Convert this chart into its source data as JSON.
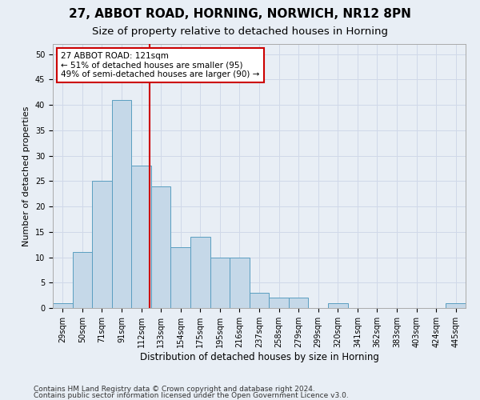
{
  "title1": "27, ABBOT ROAD, HORNING, NORWICH, NR12 8PN",
  "title2": "Size of property relative to detached houses in Horning",
  "xlabel": "Distribution of detached houses by size in Horning",
  "ylabel": "Number of detached properties",
  "categories": [
    "29sqm",
    "50sqm",
    "71sqm",
    "91sqm",
    "112sqm",
    "133sqm",
    "154sqm",
    "175sqm",
    "195sqm",
    "216sqm",
    "237sqm",
    "258sqm",
    "279sqm",
    "299sqm",
    "320sqm",
    "341sqm",
    "362sqm",
    "383sqm",
    "403sqm",
    "424sqm",
    "445sqm"
  ],
  "values": [
    1,
    11,
    25,
    41,
    28,
    24,
    12,
    14,
    10,
    10,
    3,
    2,
    2,
    0,
    1,
    0,
    0,
    0,
    0,
    0,
    1
  ],
  "bar_color": "#c5d8e8",
  "bar_edge_color": "#5a9ec0",
  "vline_color": "#cc0000",
  "annotation_line1": "27 ABBOT ROAD: 121sqm",
  "annotation_line2": "← 51% of detached houses are smaller (95)",
  "annotation_line3": "49% of semi-detached houses are larger (90) →",
  "annotation_box_color": "#cc0000",
  "annotation_box_fill": "white",
  "ylim": [
    0,
    52
  ],
  "yticks": [
    0,
    5,
    10,
    15,
    20,
    25,
    30,
    35,
    40,
    45,
    50
  ],
  "grid_color": "#d0d8e8",
  "background_color": "#e8eef5",
  "footer1": "Contains HM Land Registry data © Crown copyright and database right 2024.",
  "footer2": "Contains public sector information licensed under the Open Government Licence v3.0.",
  "title1_fontsize": 11,
  "title2_fontsize": 9.5,
  "xlabel_fontsize": 8.5,
  "ylabel_fontsize": 8,
  "tick_fontsize": 7,
  "footer_fontsize": 6.5,
  "annot_fontsize": 7.5
}
